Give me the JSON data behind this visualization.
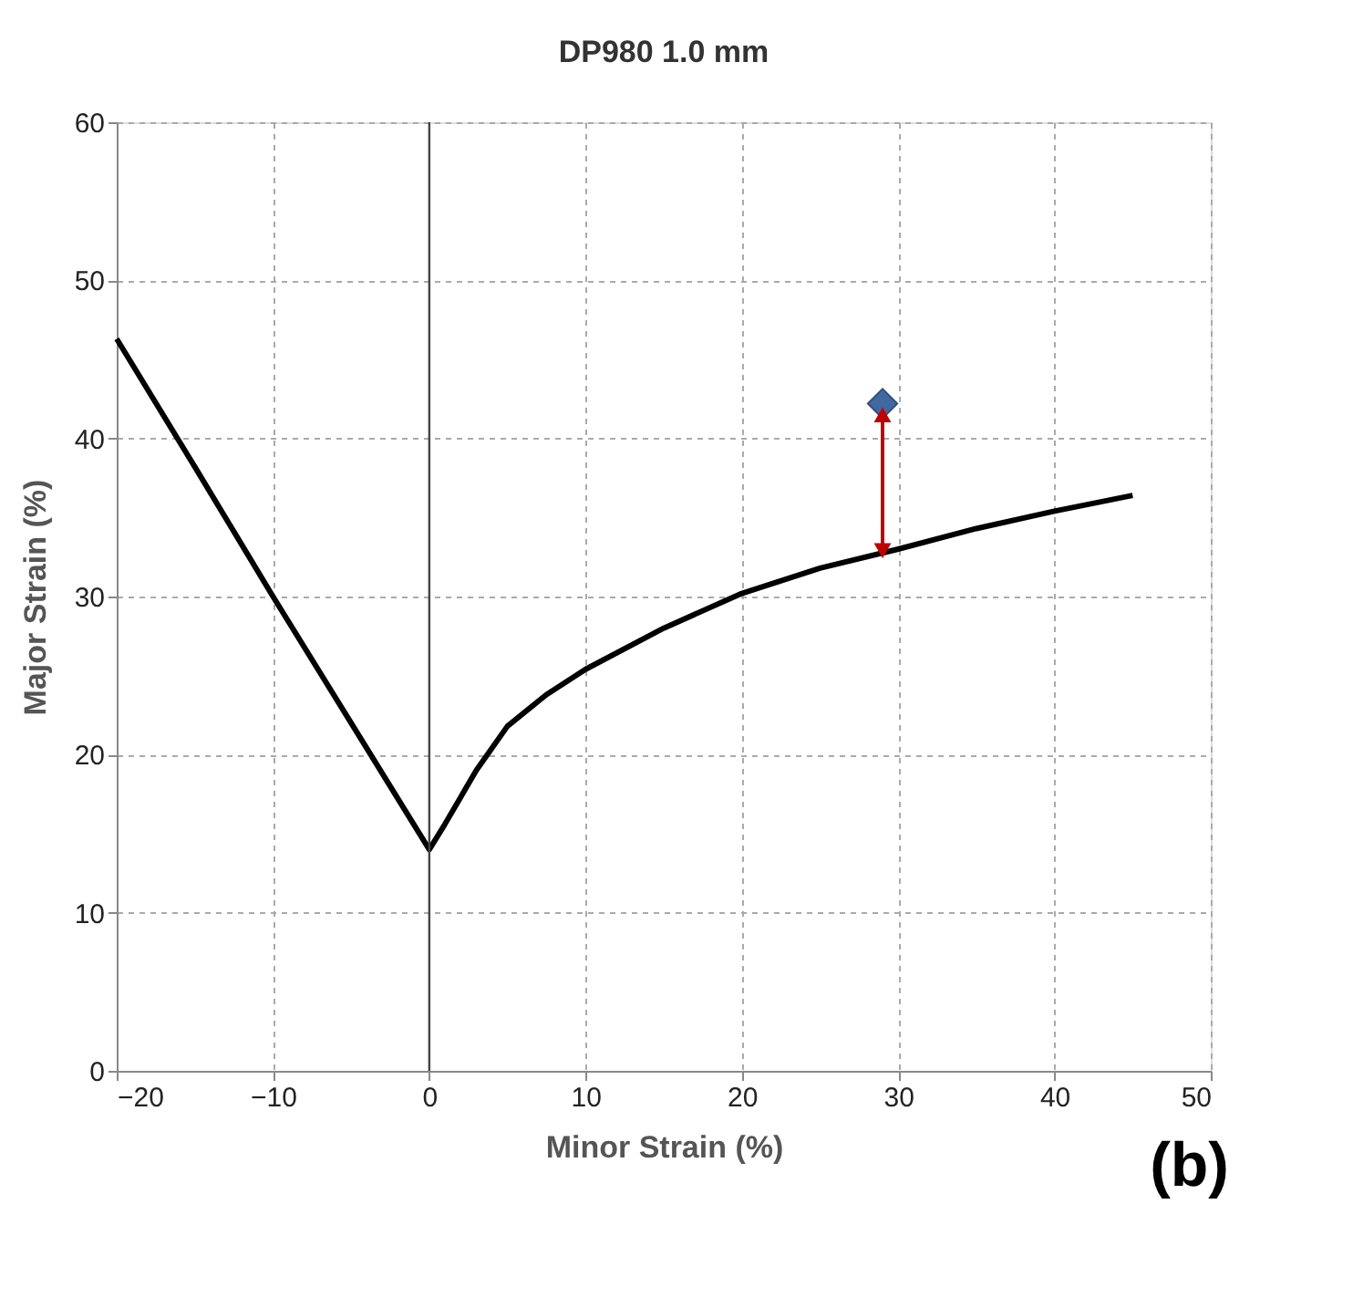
{
  "chart_data": {
    "type": "line",
    "title": "DP980  1.0 mm",
    "xlabel": "Minor Strain (%)",
    "ylabel": "Major Strain (%)",
    "xlim": [
      -20,
      50
    ],
    "xticks": [
      -20,
      -10,
      0,
      10,
      20,
      30,
      40,
      50
    ],
    "ylim": [
      0,
      60
    ],
    "yticks": [
      0,
      10,
      20,
      30,
      40,
      50,
      60
    ],
    "grid": true,
    "ref_lines": [
      {
        "axis": "x",
        "value": 0,
        "color": "#444444",
        "line_style": "solid"
      }
    ],
    "annotations": [
      "(b)"
    ],
    "series": [
      {
        "color": "#000000",
        "marker": "none",
        "x": [
          -20,
          -15,
          -10,
          -5,
          0,
          1,
          2,
          3,
          5,
          7.5,
          10,
          15,
          20,
          25,
          30,
          35,
          40,
          45
        ],
        "values": [
          46.3,
          38.2,
          30,
          22,
          14,
          15.6,
          17.3,
          19,
          21.8,
          23.8,
          25.4,
          28,
          30.2,
          31.8,
          33,
          34.3,
          35.4,
          36.4
        ]
      },
      {
        "type": "scatter",
        "color": "#41689f",
        "marker": "diamond",
        "x": [
          29
        ],
        "values": [
          42.2
        ]
      },
      {
        "type": "line",
        "color": "#c00000",
        "marker": "triangle",
        "x": [
          29,
          29
        ],
        "values": [
          32.9,
          41.5
        ]
      }
    ]
  }
}
